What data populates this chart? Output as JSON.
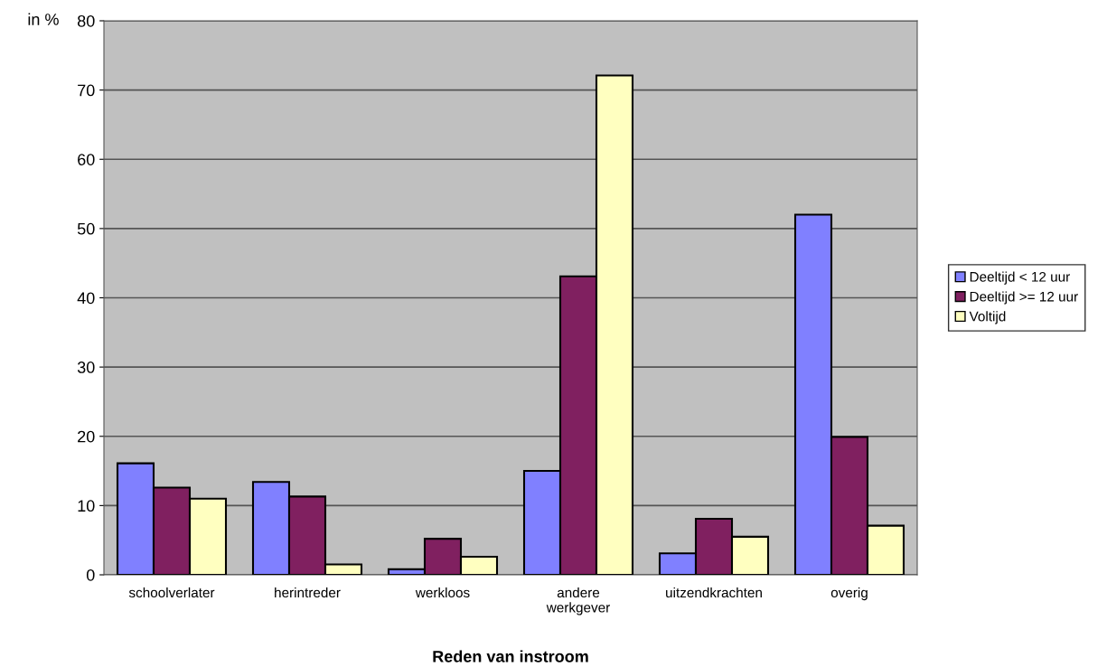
{
  "chart_data": {
    "type": "bar",
    "xlabel": "Reden van instroom",
    "ylabel": "in %",
    "categories": [
      "schoolverlater",
      "herintreder",
      "werkloos",
      "andere\nwerkgever",
      "uitzendkrachten",
      "overig"
    ],
    "series": [
      {
        "name": "Deeltijd < 12 uur",
        "color": "#8080ff",
        "values": [
          16.1,
          13.4,
          0.8,
          15.0,
          3.1,
          52.0
        ]
      },
      {
        "name": "Deeltijd >= 12 uur",
        "color": "#802060",
        "values": [
          12.6,
          11.3,
          5.2,
          43.1,
          8.1,
          19.9
        ]
      },
      {
        "name": "Voltijd",
        "color": "#ffffc0",
        "values": [
          11.0,
          1.5,
          2.6,
          72.1,
          5.5,
          7.1
        ]
      }
    ],
    "ylim": [
      0,
      80
    ],
    "yticks": [
      0,
      10,
      20,
      30,
      40,
      50,
      60,
      70,
      80
    ],
    "grid": "y",
    "legend": "right"
  }
}
